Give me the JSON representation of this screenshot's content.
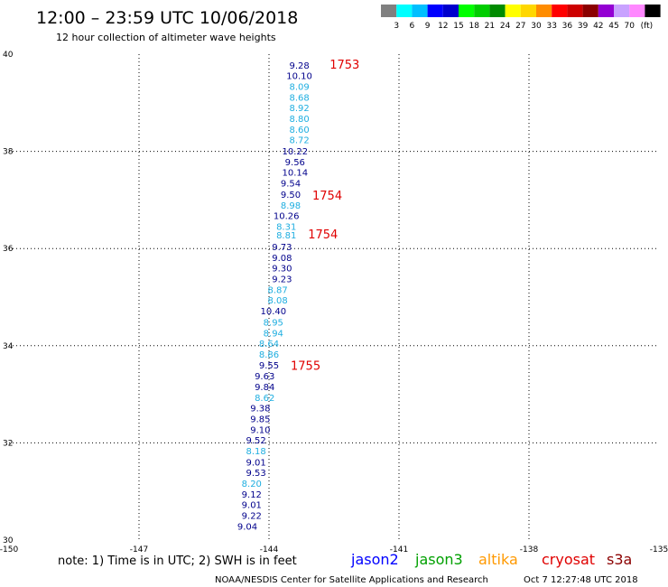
{
  "header": {
    "title": "12:00 – 23:59 UTC 10/06/2018",
    "subtitle": "12 hour collection of altimeter wave heights"
  },
  "scale": {
    "colors": [
      "#808080",
      "#00ffff",
      "#00bfff",
      "#0000ff",
      "#0000cd",
      "#00ff00",
      "#00cd00",
      "#008b00",
      "#ffff00",
      "#ffd700",
      "#ff8c00",
      "#ff0000",
      "#cd0000",
      "#8b0000",
      "#9400d3",
      "#c8a2ff",
      "#ff88ff",
      "#000000"
    ],
    "labels": [
      "3",
      "6",
      "9",
      "12",
      "15",
      "18",
      "21",
      "24",
      "27",
      "30",
      "33",
      "36",
      "39",
      "42",
      "45",
      "70"
    ],
    "unit": "(ft)"
  },
  "footer": {
    "note": "note:  1) Time is in UTC;  2) SWH is in feet",
    "credit": "NOAA/NESDIS Center for Satellite Applications and Research",
    "timestamp": "Oct  7 12:27:48 UTC 2018",
    "satellites": [
      {
        "name": "jason2",
        "color": "#0000ff"
      },
      {
        "name": "jason3",
        "color": "#00a000"
      },
      {
        "name": "altika",
        "color": "#ff9900"
      },
      {
        "name": "cryosat",
        "color": "#e00000"
      },
      {
        "name": "s3a",
        "color": "#8b0000"
      }
    ]
  },
  "chart_data": {
    "type": "scatter",
    "xlim": [
      -150,
      -135
    ],
    "ylim": [
      30,
      40
    ],
    "xticks": [
      -150,
      -147,
      -144,
      -141,
      -138,
      -135
    ],
    "yticks": [
      30,
      32,
      34,
      36,
      38,
      40
    ],
    "grid": true,
    "points": [
      {
        "lon": -143.3,
        "lat": 39.78,
        "swh": "9.28",
        "color": "#00008b"
      },
      {
        "lon": -143.3,
        "lat": 39.56,
        "swh": "10.10",
        "color": "#00008b"
      },
      {
        "lon": -143.3,
        "lat": 39.34,
        "swh": "8.09",
        "color": "#1eaee0"
      },
      {
        "lon": -143.3,
        "lat": 39.12,
        "swh": "8.68",
        "color": "#1eaee0"
      },
      {
        "lon": -143.3,
        "lat": 38.9,
        "swh": "8.92",
        "color": "#1eaee0"
      },
      {
        "lon": -143.3,
        "lat": 38.68,
        "swh": "8.80",
        "color": "#1eaee0"
      },
      {
        "lon": -143.3,
        "lat": 38.46,
        "swh": "8.60",
        "color": "#1eaee0"
      },
      {
        "lon": -143.3,
        "lat": 38.24,
        "swh": "8.72",
        "color": "#1eaee0"
      },
      {
        "lon": -143.4,
        "lat": 38.01,
        "swh": "10.22",
        "color": "#00008b"
      },
      {
        "lon": -143.4,
        "lat": 37.79,
        "swh": "9.56",
        "color": "#00008b"
      },
      {
        "lon": -143.4,
        "lat": 37.57,
        "swh": "10.14",
        "color": "#00008b"
      },
      {
        "lon": -143.5,
        "lat": 37.35,
        "swh": "9.54",
        "color": "#00008b"
      },
      {
        "lon": -143.5,
        "lat": 37.12,
        "swh": "9.50",
        "color": "#00008b"
      },
      {
        "lon": -143.5,
        "lat": 36.9,
        "swh": "8.98",
        "color": "#1eaee0"
      },
      {
        "lon": -143.6,
        "lat": 36.68,
        "swh": "10.26",
        "color": "#00008b"
      },
      {
        "lon": -143.6,
        "lat": 36.46,
        "swh": "8.31",
        "color": "#1eaee0"
      },
      {
        "lon": -143.6,
        "lat": 36.28,
        "swh": "8.81",
        "color": "#1eaee0"
      },
      {
        "lon": -143.7,
        "lat": 36.04,
        "swh": "9.73",
        "color": "#00008b"
      },
      {
        "lon": -143.7,
        "lat": 35.82,
        "swh": "9.08",
        "color": "#00008b"
      },
      {
        "lon": -143.7,
        "lat": 35.6,
        "swh": "9.30",
        "color": "#00008b"
      },
      {
        "lon": -143.7,
        "lat": 35.38,
        "swh": "9.23",
        "color": "#00008b"
      },
      {
        "lon": -143.8,
        "lat": 35.16,
        "swh": "8.87",
        "color": "#1eaee0"
      },
      {
        "lon": -143.8,
        "lat": 34.94,
        "swh": "8.08",
        "color": "#1eaee0"
      },
      {
        "lon": -143.9,
        "lat": 34.72,
        "swh": "10.40",
        "color": "#00008b"
      },
      {
        "lon": -143.9,
        "lat": 34.49,
        "swh": "8.95",
        "color": "#1eaee0"
      },
      {
        "lon": -143.9,
        "lat": 34.27,
        "swh": "8.94",
        "color": "#1eaee0"
      },
      {
        "lon": -144.0,
        "lat": 34.05,
        "swh": "8.64",
        "color": "#1eaee0"
      },
      {
        "lon": -144.0,
        "lat": 33.83,
        "swh": "8.86",
        "color": "#1eaee0"
      },
      {
        "lon": -144.0,
        "lat": 33.61,
        "swh": "9.55",
        "color": "#00008b"
      },
      {
        "lon": -144.1,
        "lat": 33.38,
        "swh": "9.63",
        "color": "#00008b"
      },
      {
        "lon": -144.1,
        "lat": 33.16,
        "swh": "9.84",
        "color": "#00008b"
      },
      {
        "lon": -144.1,
        "lat": 32.94,
        "swh": "8.62",
        "color": "#1eaee0"
      },
      {
        "lon": -144.2,
        "lat": 32.72,
        "swh": "9.38",
        "color": "#00008b"
      },
      {
        "lon": -144.2,
        "lat": 32.5,
        "swh": "9.85",
        "color": "#00008b"
      },
      {
        "lon": -144.2,
        "lat": 32.28,
        "swh": "9.10",
        "color": "#00008b"
      },
      {
        "lon": -144.3,
        "lat": 32.06,
        "swh": "9.52",
        "color": "#00008b"
      },
      {
        "lon": -144.3,
        "lat": 31.84,
        "swh": "8.18",
        "color": "#1eaee0"
      },
      {
        "lon": -144.3,
        "lat": 31.61,
        "swh": "9.01",
        "color": "#00008b"
      },
      {
        "lon": -144.3,
        "lat": 31.39,
        "swh": "9.53",
        "color": "#00008b"
      },
      {
        "lon": -144.4,
        "lat": 31.17,
        "swh": "8.20",
        "color": "#1eaee0"
      },
      {
        "lon": -144.4,
        "lat": 30.95,
        "swh": "9.12",
        "color": "#00008b"
      },
      {
        "lon": -144.4,
        "lat": 30.73,
        "swh": "9.01",
        "color": "#00008b"
      },
      {
        "lon": -144.4,
        "lat": 30.51,
        "swh": "9.22",
        "color": "#00008b"
      },
      {
        "lon": -144.5,
        "lat": 30.29,
        "swh": "9.04",
        "color": "#00008b"
      }
    ],
    "time_labels": [
      {
        "lon": -142.6,
        "lat": 39.78,
        "text": "1753"
      },
      {
        "lon": -143.0,
        "lat": 37.08,
        "text": "1754"
      },
      {
        "lon": -143.1,
        "lat": 36.28,
        "text": "1754"
      },
      {
        "lon": -143.5,
        "lat": 33.58,
        "text": "1755"
      }
    ]
  }
}
